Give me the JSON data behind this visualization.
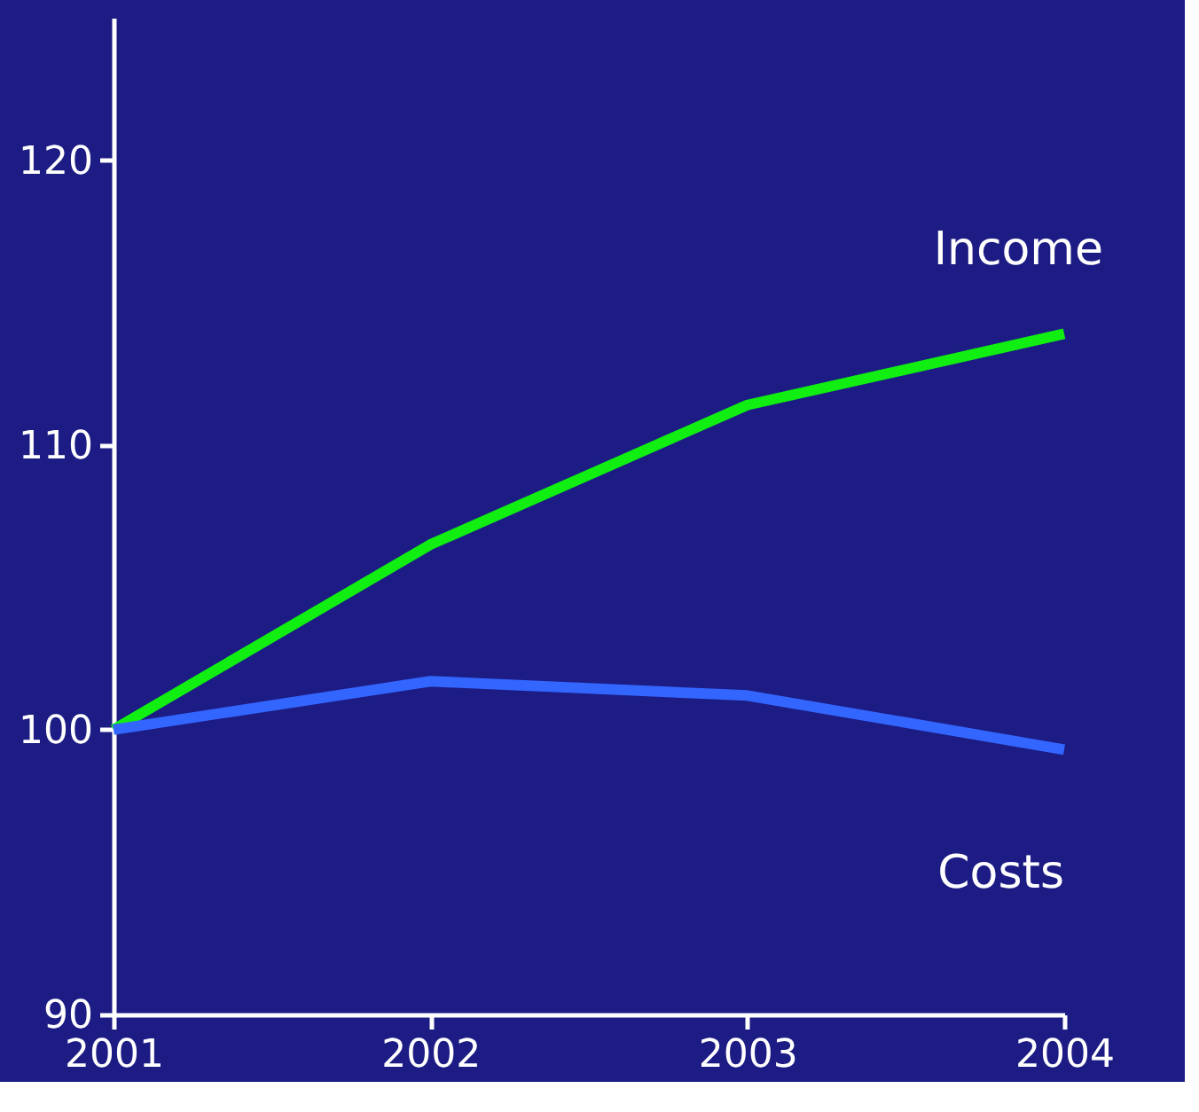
{
  "chart_data": {
    "type": "line",
    "x": [
      2001,
      2002,
      2003,
      2004
    ],
    "series": [
      {
        "name": "Income",
        "color": "#11ee11",
        "values": [
          100,
          106.5,
          111.4,
          113.9
        ]
      },
      {
        "name": "Costs",
        "color": "#3366ff",
        "values": [
          100,
          101.7,
          101.2,
          99.3
        ]
      }
    ],
    "xlim": [
      2001,
      2004
    ],
    "xticks": [
      2001,
      2002,
      2003,
      2004
    ],
    "ylim": [
      90,
      125
    ],
    "yticks": [
      90,
      100,
      110,
      120
    ],
    "grid": false,
    "legend": false,
    "marker": "none",
    "line_style": "solid"
  }
}
